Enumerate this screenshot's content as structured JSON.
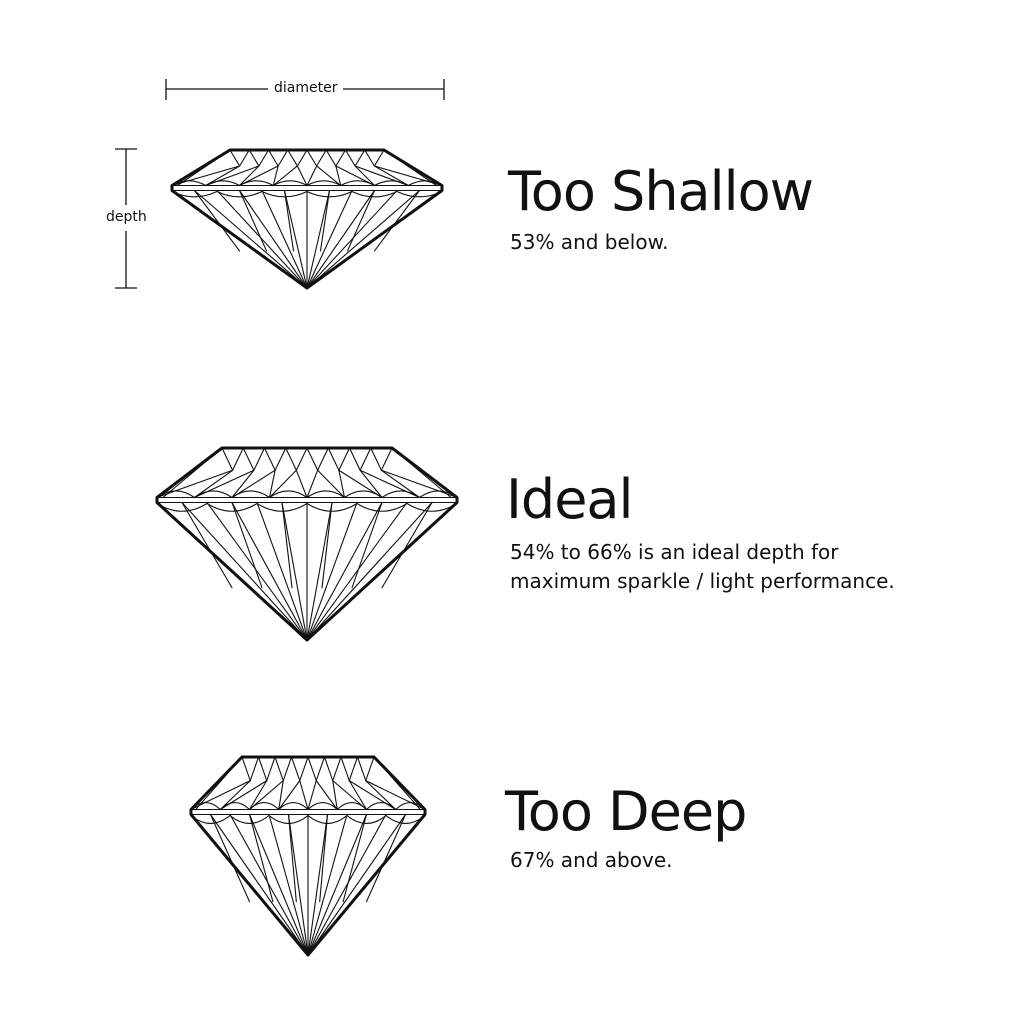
{
  "measure": {
    "diameter_label": "diameter",
    "depth_label": "depth"
  },
  "cuts": [
    {
      "title": "Too Shallow",
      "description_lines": [
        "53% and below."
      ]
    },
    {
      "title": "Ideal",
      "description_lines": [
        "54% to 66% is an ideal depth for",
        "maximum sparkle / light performance."
      ]
    },
    {
      "title": "Too Deep",
      "description_lines": [
        "67% and above."
      ]
    }
  ],
  "colors": {
    "outline": "#111111",
    "background": "#ffffff"
  }
}
